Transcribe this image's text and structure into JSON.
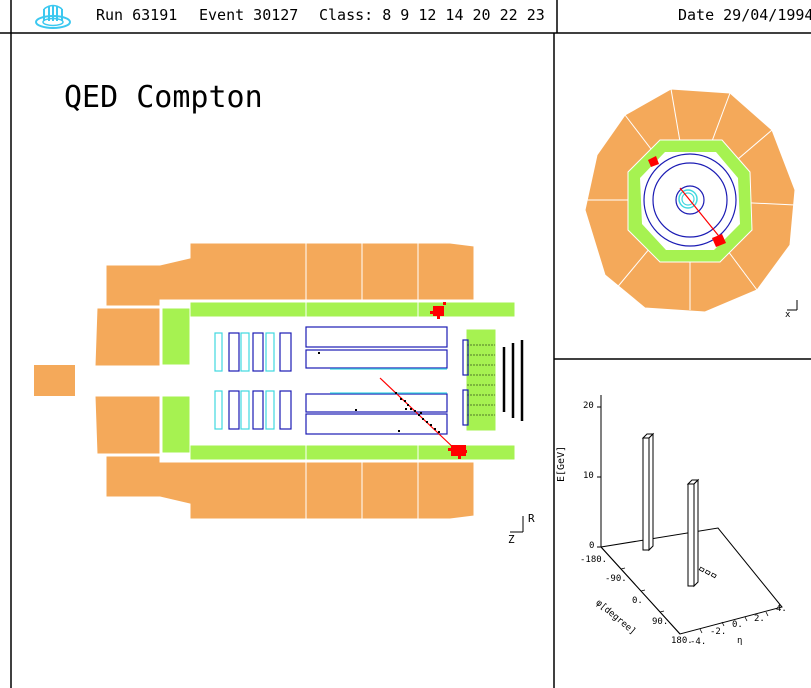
{
  "header": {
    "run": "Run 63191",
    "event": "Event 30127",
    "class": "Class: 8 9 12 14 20 22 23",
    "date": "Date 29/04/1994"
  },
  "main_title": "QED Compton",
  "side_view": {
    "axis_r": "R",
    "axis_z": "Z"
  },
  "end_view": {
    "axis_x": "x"
  },
  "lego_plot": {
    "z_label": "E[GeV]",
    "z_ticks": [
      "20",
      "10",
      "0"
    ],
    "phi_label": "φ[degree]",
    "phi_ticks": [
      "-180.",
      "-90.",
      "0.",
      "90.",
      "180."
    ],
    "eta_label": "η",
    "eta_ticks": [
      "-4.",
      "-2.",
      "0.",
      "2.",
      "4."
    ]
  },
  "colors": {
    "calorimeter": "#f4a95a",
    "inner_calorimeter": "#a6f251",
    "tracker": "#1c1cb4",
    "tracker_light": "#40d8e0",
    "energy_deposit": "#ff0000"
  }
}
